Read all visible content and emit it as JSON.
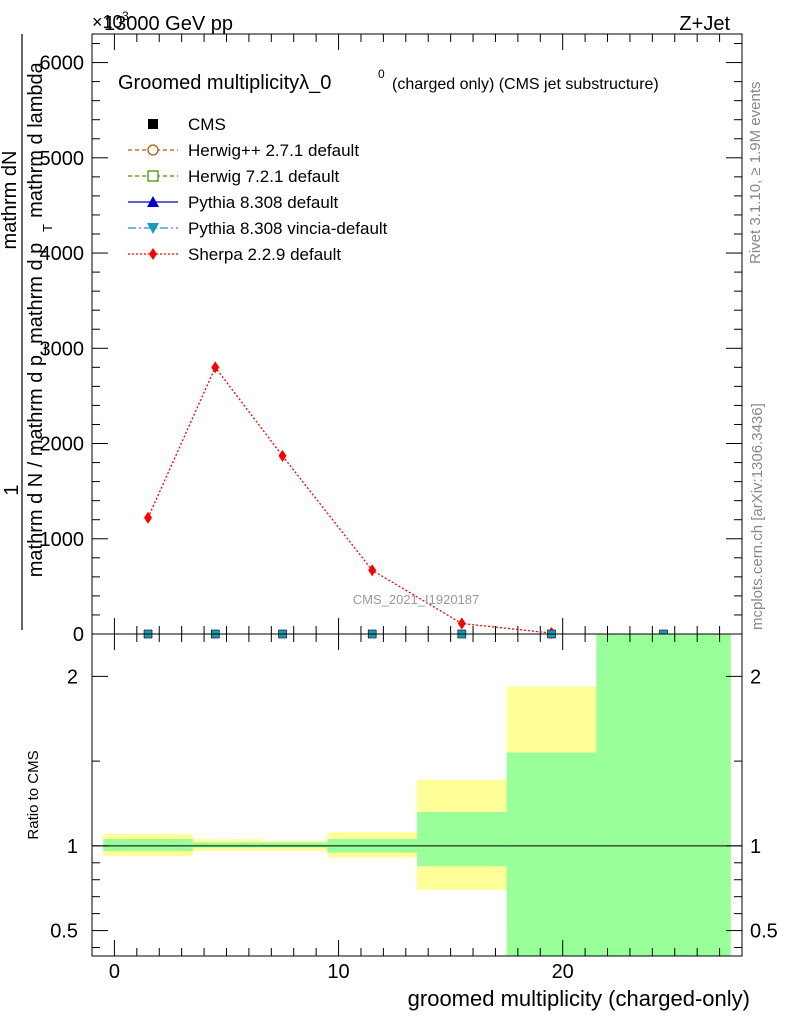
{
  "header": {
    "energy_label": "13000 GeV pp",
    "process_label": "Z+Jet",
    "exponent_label": "×10",
    "exponent_power": "3"
  },
  "side_labels": {
    "rivet": "Rivet 3.1.10, ≥ 1.9M events",
    "mcplots": "mcplots.cern.ch [arXiv:1306.3436]"
  },
  "watermark": "CMS_2021_I1920187",
  "colors": {
    "sherpa": "#ff0000",
    "herwigpp": "#b35900",
    "herwig7": "#3a9a00",
    "pythia": "#0000cc",
    "vincia": "#1a9aba",
    "band_yellow": "#ffff99",
    "band_green": "#99ff99"
  },
  "chart_data": [
    {
      "type": "line",
      "title": "Groomed multiplicityλ_0",
      "title_superscript": "0",
      "title_suffix": "(charged only) (CMS jet substructure)",
      "ylabel_parts": [
        "1",
        "mathrm dN",
        "mathrm d N / mathrm d p_mathrm d p",
        "T",
        "mathrm d lambda"
      ],
      "ylim": [
        0,
        6300
      ],
      "xlim": [
        -1,
        28
      ],
      "yticks": [
        {
          "v": 0,
          "label": "0"
        },
        {
          "v": 1000,
          "label": "1000"
        },
        {
          "v": 2000,
          "label": "2000"
        },
        {
          "v": 3000,
          "label": "3000"
        },
        {
          "v": 4000,
          "label": "4000"
        },
        {
          "v": 5000,
          "label": "5000"
        },
        {
          "v": 6000,
          "label": "6000"
        }
      ],
      "legend_position": "top-left",
      "legend": [
        {
          "name": "CMS",
          "style": "data"
        },
        {
          "name": "Herwig++ 2.7.1 default",
          "style": "herwigpp"
        },
        {
          "name": "Herwig 7.2.1 default",
          "style": "herwig7"
        },
        {
          "name": "Pythia 8.308 default",
          "style": "pythia"
        },
        {
          "name": "Pythia 8.308 vincia-default",
          "style": "vincia"
        },
        {
          "name": "Sherpa 2.2.9 default",
          "style": "sherpa"
        }
      ],
      "series": [
        {
          "name": "Sherpa 2.2.9 default",
          "x": [
            1.5,
            4.5,
            7.5,
            11.5,
            15.5,
            19.5
          ],
          "y": [
            1220,
            2800,
            1870,
            670,
            110,
            10
          ]
        },
        {
          "name": "CMS",
          "x": [
            1.5,
            4.5,
            7.5,
            11.5,
            15.5,
            19.5,
            24.5
          ],
          "y": [
            0,
            0,
            0,
            0,
            0,
            0,
            0
          ]
        }
      ]
    },
    {
      "type": "area",
      "ylabel": "Ratio to CMS",
      "xlabel": "groomed multiplicity (charged-only)",
      "ylim": [
        0.35,
        2.25
      ],
      "xlim": [
        -1,
        28
      ],
      "xticks": [
        {
          "v": 0,
          "label": "0"
        },
        {
          "v": 10,
          "label": "10"
        },
        {
          "v": 20,
          "label": "20"
        }
      ],
      "yticks": [
        {
          "v": 0.5,
          "label": "0.5"
        },
        {
          "v": 1,
          "label": "1"
        },
        {
          "v": 2,
          "label": "2"
        }
      ],
      "bins": [
        {
          "lo": -0.5,
          "hi": 3.5,
          "yellow": [
            0.94,
            1.07
          ],
          "green": [
            0.97,
            1.04
          ]
        },
        {
          "lo": 3.5,
          "hi": 6.5,
          "yellow": [
            0.97,
            1.04
          ],
          "green": [
            0.99,
            1.02
          ]
        },
        {
          "lo": 6.5,
          "hi": 9.5,
          "yellow": [
            0.97,
            1.03
          ],
          "green": [
            0.99,
            1.02
          ]
        },
        {
          "lo": 9.5,
          "hi": 13.5,
          "yellow": [
            0.93,
            1.08
          ],
          "green": [
            0.96,
            1.04
          ]
        },
        {
          "lo": 13.5,
          "hi": 17.5,
          "yellow": [
            0.74,
            1.39
          ],
          "green": [
            0.88,
            1.2
          ]
        },
        {
          "lo": 17.5,
          "hi": 21.5,
          "yellow": [
            0.35,
            1.94
          ],
          "green": [
            0.35,
            1.55
          ]
        },
        {
          "lo": 21.5,
          "hi": 27.5,
          "yellow": [
            0.35,
            2.25
          ],
          "green": [
            0.35,
            2.25
          ]
        }
      ],
      "yellow_gaps": [
        {
          "lo": 17.5,
          "hi": 21.5,
          "gap": [
            0.55,
            1.55
          ]
        }
      ]
    }
  ]
}
